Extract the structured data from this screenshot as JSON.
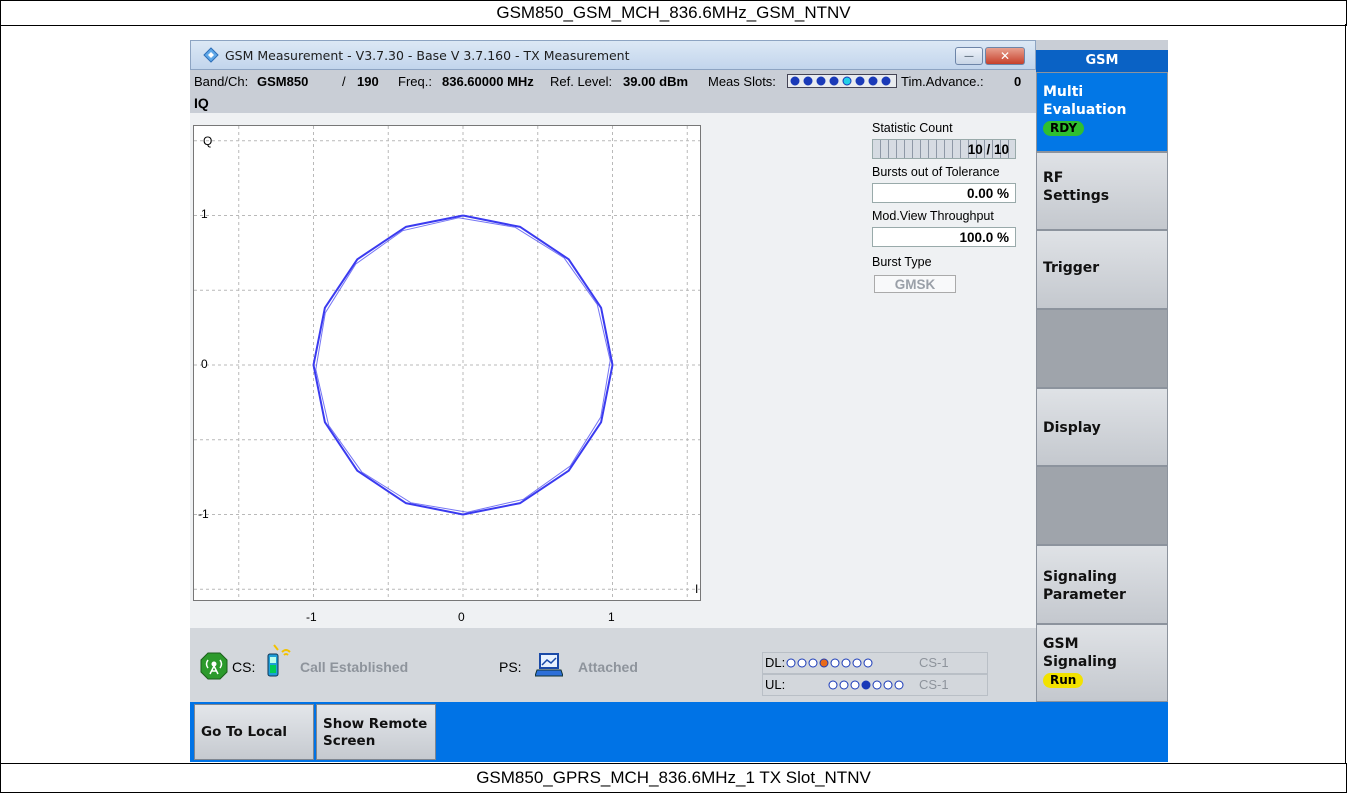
{
  "captions": {
    "top": "GSM850_GSM_MCH_836.6MHz_GSM_NTNV",
    "bottom": "GSM850_GPRS_MCH_836.6MHz_1 TX Slot_NTNV"
  },
  "window": {
    "title": "GSM Measurement  - V3.7.30 - Base V 3.7.160 - TX Measurement",
    "minimize": "—",
    "close": "✕"
  },
  "infobar": {
    "band_label": "Band/Ch:",
    "band_value": "GSM850",
    "ch_sep": "/",
    "channel": "190",
    "freq_label": "Freq.:",
    "freq_value": "836.60000 MHz",
    "ref_label": "Ref. Level:",
    "ref_value": "39.00 dBm",
    "slots_label": "Meas Slots:",
    "ta_label": "Tim.Advance.:",
    "ta_value": "0"
  },
  "plot": {
    "title": "IQ",
    "y_axis_label": "Q",
    "x_axis_label": "I",
    "y_ticks": [
      "1",
      "0",
      "-1"
    ],
    "x_ticks": [
      "-1",
      "0",
      "1"
    ],
    "trace_color": "#3a3af0"
  },
  "stats": {
    "count_label": "Statistic Count",
    "count_value": "10 / 10",
    "bursts_label": "Bursts out of Tolerance",
    "bursts_value": "0.00  %",
    "throughput_label": "Mod.View Throughput",
    "throughput_value": "100.0  %",
    "burst_type_label": "Burst Type",
    "burst_type_value": "GMSK"
  },
  "sidebar": {
    "header": "GSM",
    "items": [
      {
        "line1": "Multi",
        "line2": "Evaluation",
        "badge": "RDY"
      },
      {
        "line1": "RF",
        "line2": "Settings"
      },
      {
        "line1": "Trigger"
      },
      {
        "line1": ""
      },
      {
        "line1": "Display"
      },
      {
        "line1": ""
      },
      {
        "line1": "Signaling",
        "line2": "Parameter"
      },
      {
        "line1": "GSM",
        "line2": "Signaling",
        "badge": "Run"
      }
    ]
  },
  "status": {
    "cs_label": "CS:",
    "cs_state": "Call Established",
    "ps_label": "PS:",
    "ps_state": "Attached",
    "dl_label": "DL:",
    "dl_cs": "CS-1",
    "ul_label": "UL:",
    "ul_cs": "CS-1"
  },
  "bottom_buttons": {
    "go_to_local": "Go To Local",
    "show_remote_1": "Show Remote",
    "show_remote_2": "Screen"
  },
  "colors": {
    "accent_blue": "#0073e6",
    "ready_badge": "#2fbf2f",
    "run_badge": "#f2e200"
  }
}
